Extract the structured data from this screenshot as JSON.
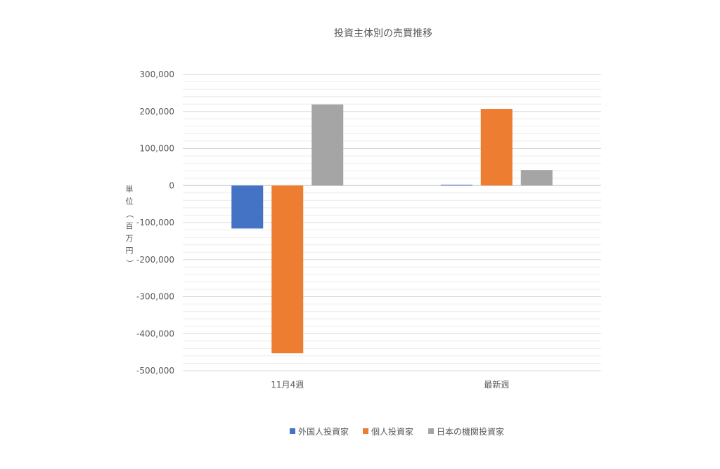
{
  "chart_data": {
    "type": "bar",
    "title": "投資主体別の売買推移",
    "ylabel": "単位（百万円）",
    "xlabel": "",
    "categories": [
      "11月4週",
      "最新週"
    ],
    "series": [
      {
        "name": "外国人投資家",
        "color": "#4472c4",
        "values": [
          -116000,
          2000
        ]
      },
      {
        "name": "個人投資家",
        "color": "#ed7d31",
        "values": [
          -453000,
          207000
        ]
      },
      {
        "name": "日本の機関投資家",
        "color": "#a5a5a5",
        "values": [
          219000,
          42000
        ]
      }
    ],
    "ylim": [
      -500000,
      300000
    ],
    "yticks": [
      300000,
      200000,
      100000,
      0,
      -100000,
      -200000,
      -300000,
      -400000,
      -500000
    ],
    "ytick_labels": [
      "300,000",
      "200,000",
      "100,000",
      "0",
      "-100,000",
      "-200,000",
      "-300,000",
      "-400,000",
      "-500,000"
    ],
    "grid": true,
    "legend_position": "bottom"
  }
}
